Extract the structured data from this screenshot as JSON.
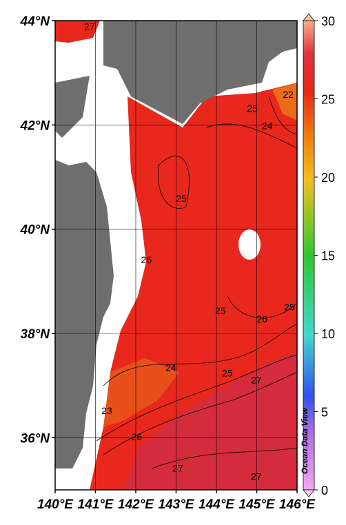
{
  "map": {
    "xlim": [
      140,
      146
    ],
    "ylim": [
      35,
      44
    ],
    "xticks": [
      {
        "value": 140,
        "label": "140°E"
      },
      {
        "value": 141,
        "label": "141°E"
      },
      {
        "value": 142,
        "label": "142°E"
      },
      {
        "value": 143,
        "label": "143°E"
      },
      {
        "value": 144,
        "label": "144°E"
      },
      {
        "value": 145,
        "label": "145°E"
      },
      {
        "value": 146,
        "label": "146°E"
      }
    ],
    "yticks": [
      {
        "value": 36,
        "label": "36°N"
      },
      {
        "value": 38,
        "label": "38°N"
      },
      {
        "value": 40,
        "label": "40°N"
      },
      {
        "value": 42,
        "label": "42°N"
      },
      {
        "value": 44,
        "label": "44°N"
      }
    ],
    "colorbar": {
      "range": [
        0,
        30
      ],
      "ticks": [
        0,
        5,
        10,
        15,
        20,
        25,
        30
      ]
    },
    "contour_labels": [
      {
        "value": 27,
        "lon": 140.85,
        "lat": 43.87
      },
      {
        "value": 22,
        "lon": 145.78,
        "lat": 42.57
      },
      {
        "value": 25,
        "lon": 144.89,
        "lat": 42.3
      },
      {
        "value": 24,
        "lon": 145.26,
        "lat": 41.97
      },
      {
        "value": 25,
        "lon": 143.13,
        "lat": 40.57
      },
      {
        "value": 26,
        "lon": 142.26,
        "lat": 39.4
      },
      {
        "value": 25,
        "lon": 144.1,
        "lat": 38.42
      },
      {
        "value": 26,
        "lon": 145.13,
        "lat": 38.26
      },
      {
        "value": 25,
        "lon": 145.81,
        "lat": 38.49
      },
      {
        "value": 24,
        "lon": 142.87,
        "lat": 37.33
      },
      {
        "value": 25,
        "lon": 144.27,
        "lat": 37.22
      },
      {
        "value": 27,
        "lon": 144.99,
        "lat": 37.09
      },
      {
        "value": 23,
        "lon": 141.28,
        "lat": 36.5
      },
      {
        "value": 26,
        "lon": 142.02,
        "lat": 36.0
      },
      {
        "value": 27,
        "lon": 143.04,
        "lat": 35.4
      },
      {
        "value": 27,
        "lon": 144.99,
        "lat": 35.24
      }
    ],
    "watermark": "Ocean Data View"
  }
}
